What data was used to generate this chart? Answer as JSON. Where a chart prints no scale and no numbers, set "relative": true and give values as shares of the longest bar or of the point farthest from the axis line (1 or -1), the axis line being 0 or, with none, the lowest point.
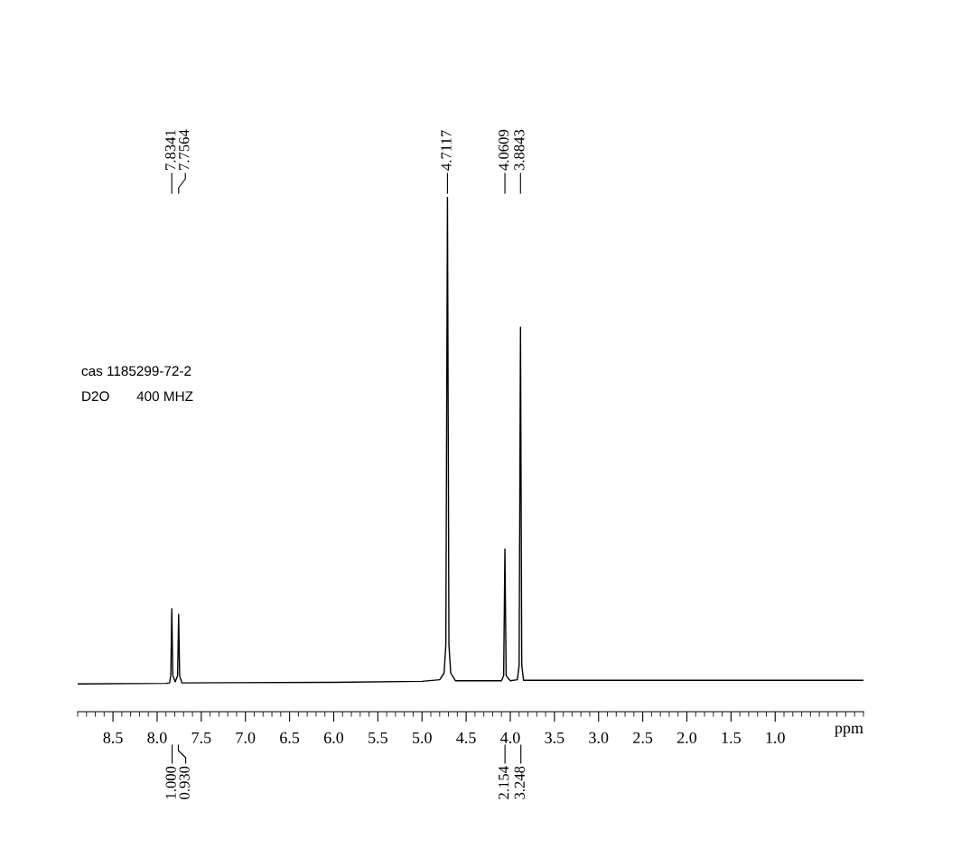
{
  "chart_data": {
    "type": "line",
    "relative": true,
    "xlabel": "ppm",
    "xlim": [
      8.9,
      0.0
    ],
    "xticks": [
      8.5,
      {
        "value": 8,
        "label": "8.0"
      },
      7.5,
      {
        "value": 7,
        "label": "7.0"
      },
      6.5,
      {
        "value": 6,
        "label": "6.0"
      },
      5.5,
      {
        "value": 5,
        "label": "5.0"
      },
      4.5,
      {
        "value": 4,
        "label": "4.0"
      },
      3.5,
      {
        "value": 3,
        "label": "3.0"
      },
      2.5,
      {
        "value": 2,
        "label": "2.0"
      },
      1.5,
      {
        "value": 1,
        "label": "1.0"
      }
    ],
    "grid": false,
    "series": [
      {
        "color": "#000000",
        "x": [
          8.9,
          7.9,
          7.86,
          7.845,
          7.8341,
          7.822,
          7.795,
          7.768,
          7.7564,
          7.745,
          7.72,
          6.0,
          5.0,
          4.8,
          4.75,
          4.73,
          4.7117,
          4.695,
          4.675,
          4.62,
          4.1,
          4.075,
          4.0609,
          4.047,
          4.0,
          3.92,
          3.9,
          3.8843,
          3.87,
          3.85,
          2.0,
          0.0
        ],
        "values": [
          0.054,
          0.055,
          0.056,
          0.07,
          0.2,
          0.07,
          0.058,
          0.07,
          0.189,
          0.07,
          0.056,
          0.057,
          0.059,
          0.062,
          0.075,
          0.13,
          1.0,
          0.13,
          0.075,
          0.06,
          0.06,
          0.07,
          0.316,
          0.07,
          0.06,
          0.062,
          0.09,
          0.747,
          0.09,
          0.061,
          0.061,
          0.061
        ]
      }
    ],
    "annotations": [
      "7.8341",
      "7.7564",
      "4.7117",
      "4.0609",
      "3.8843",
      {
        "text": "1.000",
        "x": 7.83
      },
      {
        "text": "0.930",
        "x": 7.76
      },
      {
        "text": "2.154",
        "x": 4.06
      },
      {
        "text": "3.248",
        "x": 3.88
      },
      "cas 1185299-72-2",
      "D2O       400 MHZ"
    ]
  }
}
